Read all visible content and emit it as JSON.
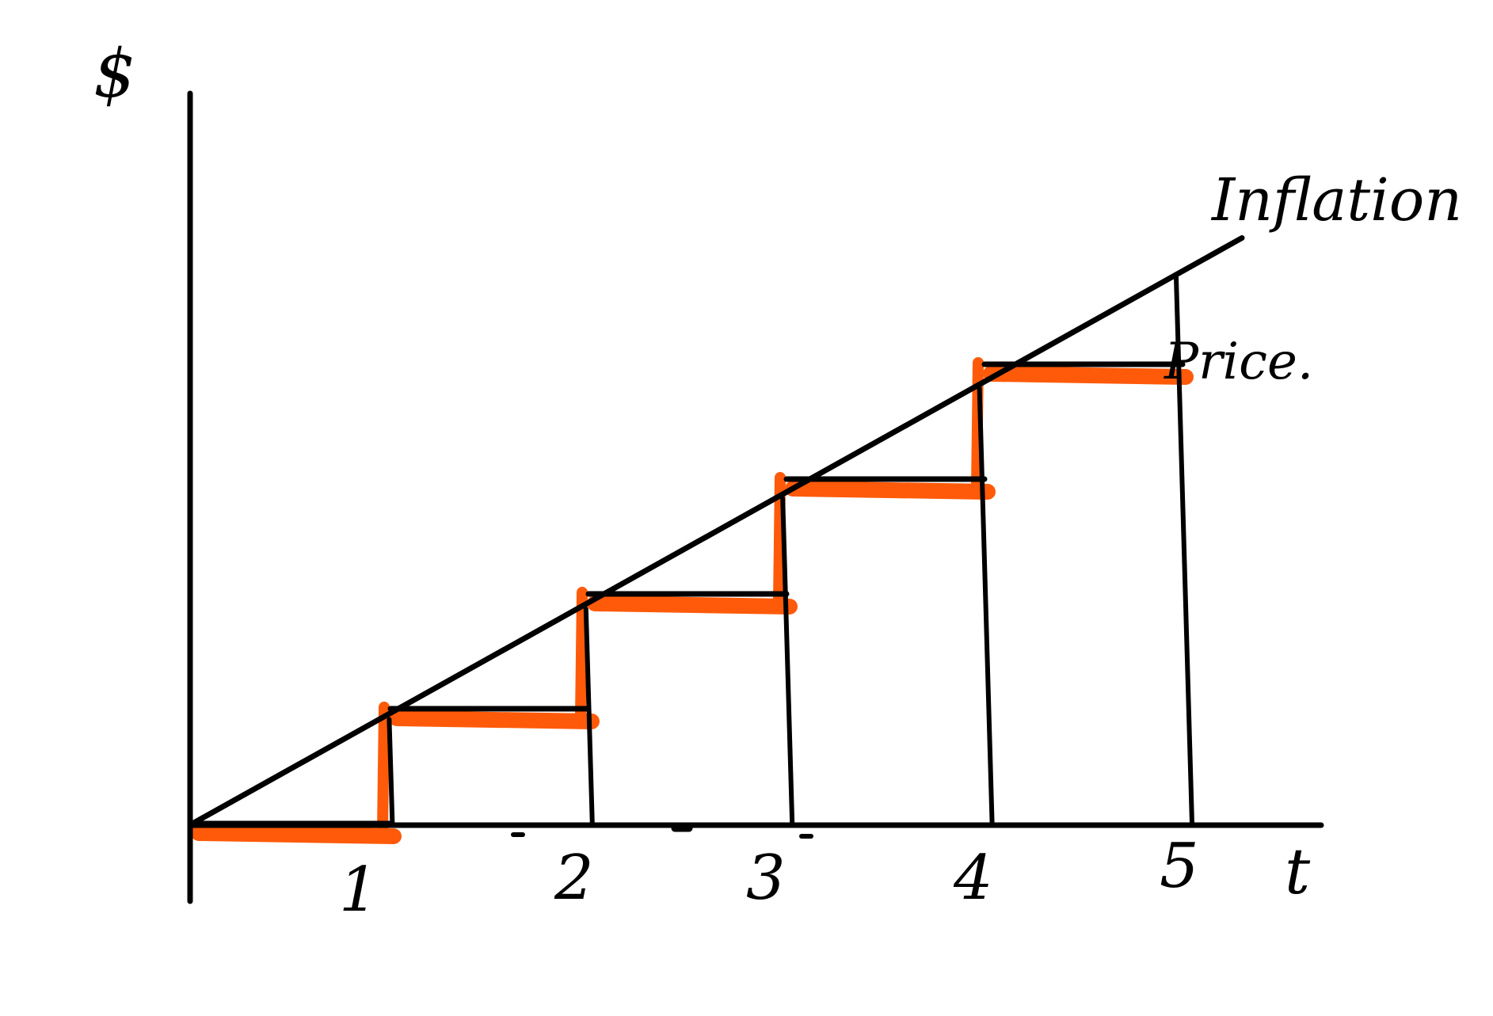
{
  "diagram": {
    "y_axis_label": "$",
    "x_axis_label": "t",
    "tick_labels": [
      "1",
      "2",
      "3",
      "4",
      "5"
    ],
    "line_labels": {
      "continuous": "Inflation",
      "step": "Price."
    },
    "inflation_line": {
      "start": [
        0,
        0
      ],
      "end": [
        5.3,
        5.1
      ]
    },
    "price_steps": [
      {
        "from_t": 0,
        "to_t": 1,
        "level": 0
      },
      {
        "from_t": 1,
        "to_t": 2,
        "level": 1
      },
      {
        "from_t": 2,
        "to_t": 3,
        "level": 2
      },
      {
        "from_t": 3,
        "to_t": 4,
        "level": 3
      },
      {
        "from_t": 4,
        "to_t": 5,
        "level": 4
      }
    ],
    "colors": {
      "ink": "#000000",
      "highlight": "#ff5a0a",
      "background": "#ffffff"
    }
  }
}
